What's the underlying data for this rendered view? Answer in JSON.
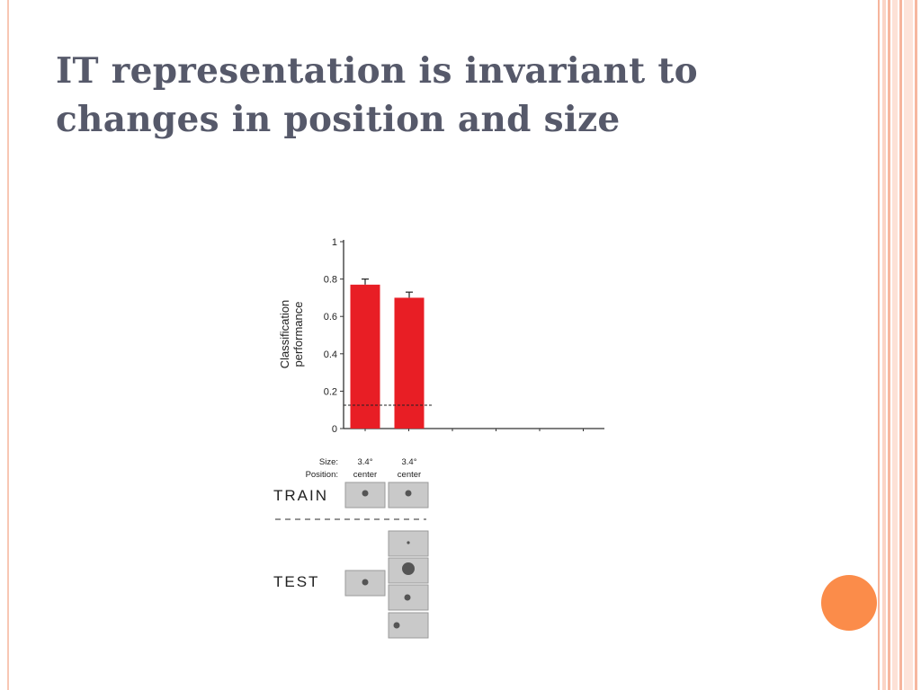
{
  "slide": {
    "title_line1": "IT representation is invariant to",
    "title_line2": "changes in position and size"
  },
  "colors": {
    "bar": "#e81e25",
    "accent_dot": "#fb8c4a",
    "title": "#56596a"
  },
  "chart_data": {
    "type": "bar",
    "categories": [
      "3.4° center",
      "3.4° center"
    ],
    "values": [
      0.77,
      0.7
    ],
    "error": [
      0.03,
      0.03
    ],
    "chance_level": 0.125,
    "ylabel": [
      "Classification",
      "performance"
    ],
    "ylim": [
      0,
      1
    ],
    "yticks": [
      "0",
      "0.2",
      "0.4",
      "0.6",
      "0.8",
      "1"
    ],
    "grid": false,
    "conditions": {
      "size_label": "Size:",
      "position_label": "Position:",
      "columns": [
        {
          "size": "3.4°",
          "position": "center"
        },
        {
          "size": "3.4°",
          "position": "center"
        }
      ]
    },
    "train_label": "TRAIN",
    "test_label": "TEST"
  }
}
